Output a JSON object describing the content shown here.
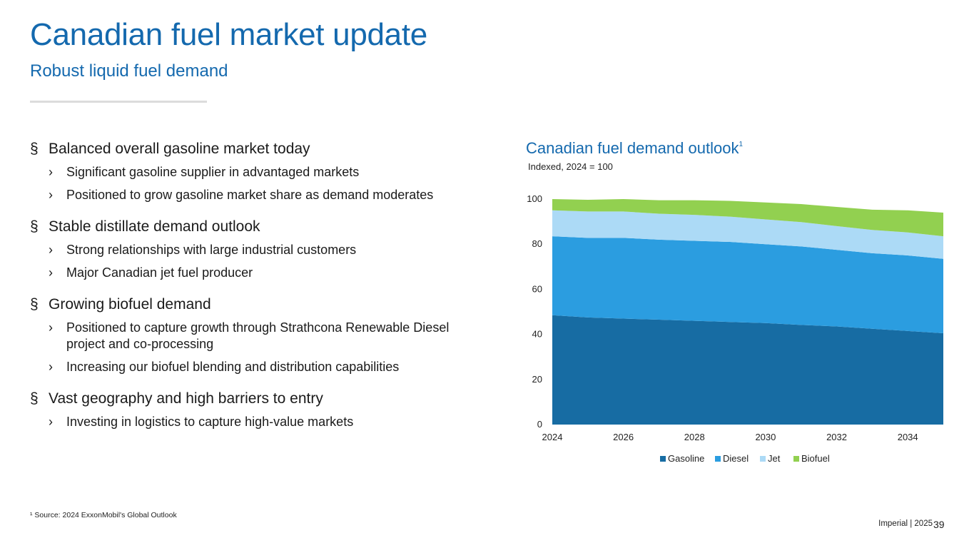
{
  "header": {
    "title": "Canadian fuel market update",
    "subtitle": "Robust liquid fuel demand"
  },
  "bullets": [
    {
      "text": "Balanced overall gasoline market today",
      "subs": [
        "Significant gasoline supplier in advantaged markets",
        "Positioned to grow gasoline market share as demand moderates"
      ]
    },
    {
      "text": "Stable distillate demand outlook",
      "subs": [
        "Strong relationships with large industrial customers",
        "Major Canadian jet fuel producer"
      ]
    },
    {
      "text": "Growing biofuel demand",
      "subs": [
        "Positioned to capture growth through Strathcona Renewable Diesel project and co-processing",
        "Increasing our biofuel blending and distribution capabilities"
      ]
    },
    {
      "text": "Vast geography and high barriers to entry",
      "subs": [
        "Investing in logistics to capture high-value markets"
      ]
    }
  ],
  "markers": {
    "level1": "§",
    "level2": "›"
  },
  "chart_block": {
    "title": "Canadian fuel demand outlook",
    "title_sup": "1",
    "subtitle": "Indexed, 2024 = 100"
  },
  "chart_data": {
    "type": "area",
    "stacked": true,
    "x": [
      2024,
      2025,
      2026,
      2027,
      2028,
      2029,
      2030,
      2031,
      2032,
      2033,
      2034,
      2035
    ],
    "series": [
      {
        "name": "Gasoline",
        "color": "#176ca3",
        "values": [
          48.5,
          47.5,
          47,
          46.5,
          46,
          45.5,
          45,
          44.2,
          43.5,
          42.5,
          41.5,
          40.5
        ]
      },
      {
        "name": "Diesel",
        "color": "#2b9de0",
        "values": [
          35,
          35.3,
          35.8,
          35.5,
          35.5,
          35.5,
          35,
          34.8,
          34,
          33.5,
          33.5,
          33
        ]
      },
      {
        "name": "Jet",
        "color": "#acdaf6",
        "values": [
          11.5,
          11.7,
          11.7,
          11.5,
          11.5,
          11.2,
          11,
          10.8,
          10.5,
          10.3,
          10.2,
          10
        ]
      },
      {
        "name": "Biofuel",
        "color": "#92d050",
        "values": [
          5,
          5.2,
          5.5,
          6,
          6.5,
          7,
          7.5,
          8,
          8.5,
          9,
          9.8,
          10.5
        ]
      }
    ],
    "xticks": [
      2024,
      2026,
      2028,
      2030,
      2032,
      2034
    ],
    "yticks": [
      0,
      20,
      40,
      60,
      80,
      100
    ],
    "ylim": [
      0,
      100
    ],
    "legend": "bottom",
    "grid": false
  },
  "footnote": "¹ Source: 2024 ExxonMobil's Global Outlook",
  "footer": {
    "brand": "Imperial  |  2025",
    "page": "39"
  }
}
